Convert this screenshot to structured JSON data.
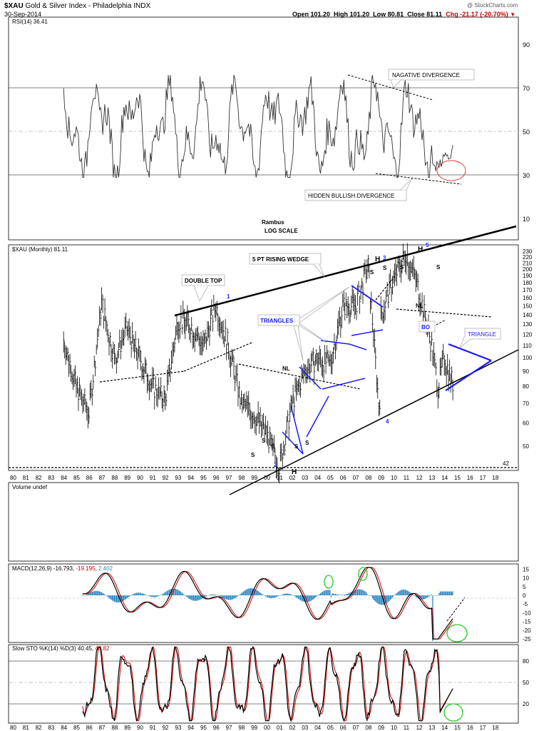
{
  "header": {
    "symbol": "$XAU",
    "name": "Gold & Silver Index - Philadelphia",
    "exchange": "INDX",
    "date": "30-Sep-2014",
    "open": "Open 101.20",
    "high": "High 101.20",
    "low": "Low 80.81",
    "close": "Close 81.11",
    "chg": "Chg -21.17 (-20.70%)",
    "chg_color": "#cc0000",
    "copyright": "@ StockCharts.com"
  },
  "panels": {
    "rsi": {
      "label": "RSI(14) 36.41",
      "ticks": [
        "90",
        "70",
        "50",
        "30",
        "10"
      ]
    },
    "price": {
      "label": "$XAU (Monthly) 81.11",
      "ticks": [
        "230",
        "220",
        "210",
        "200",
        "190",
        "180",
        "170",
        "160",
        "150",
        "140",
        "130",
        "120",
        "110",
        "100",
        "90",
        "80",
        "70",
        "60",
        "50"
      ],
      "low_line_label": "42"
    },
    "volume": {
      "label": "Volume undef"
    },
    "macd": {
      "label_main": "MACD(12,26,9) -16.793,",
      "label_signal": "-19.195,",
      "label_hist": "2.402",
      "signal_color": "#cc0000",
      "hist_color": "#2a86c4",
      "ticks": [
        "15",
        "10",
        "5",
        "0",
        "-5",
        "-10",
        "-15",
        "-20",
        "-25"
      ]
    },
    "sto": {
      "label_main": "Slow STO %K(14) %D(3) 40.45,",
      "label_d": "46.82",
      "d_color": "#cc0000",
      "ticks": [
        "80",
        "50",
        "20"
      ]
    }
  },
  "xaxis": {
    "years": [
      "80",
      "81",
      "82",
      "83",
      "84",
      "85",
      "86",
      "87",
      "88",
      "89",
      "90",
      "91",
      "92",
      "93",
      "94",
      "95",
      "96",
      "97",
      "98",
      "99",
      "00",
      "01",
      "02",
      "03",
      "04",
      "05",
      "06",
      "07",
      "08",
      "09",
      "10",
      "11",
      "12",
      "13",
      "14",
      "15",
      "16",
      "17",
      "18"
    ]
  },
  "annotations": {
    "nagative_divergence": "NAGATIVE DIVERGENCE",
    "hidden_bullish_divergence": "HIDDEN BULLISH DIVERGENCE",
    "rambus": "Rambus",
    "log_scale": "LOG SCALE",
    "double_top": "DOUBLE TOP",
    "rising_wedge": "5 PT RISING WEDGE",
    "triangles": "TRIANGLES",
    "triangle": "TRIANGLE",
    "bo": "BO",
    "nl": "NL",
    "h": "H",
    "s": "S",
    "pt1": "1",
    "pt2": "2",
    "pt3": "3",
    "pt4": "4",
    "pt5": "5"
  },
  "colors": {
    "price": "#000000",
    "trendline_blue": "#1a1aff",
    "circle_red": "#e04040",
    "circle_green": "#22cc22",
    "grid": "#000000"
  },
  "chart_data": {
    "type": "line",
    "title": "$XAU Gold & Silver Index - Philadelphia",
    "scale": "log",
    "x_range": [
      "1980",
      "2018"
    ],
    "price_keypoints": [
      {
        "x": "1984",
        "y": 115
      },
      {
        "x": "1985",
        "y": 80
      },
      {
        "x": "1986",
        "y": 65
      },
      {
        "x": "1987",
        "y": 155
      },
      {
        "x": "1988",
        "y": 100
      },
      {
        "x": "1989",
        "y": 125
      },
      {
        "x": "1990",
        "y": 100
      },
      {
        "x": "1991",
        "y": 80
      },
      {
        "x": "1992",
        "y": 72
      },
      {
        "x": "1993",
        "y": 135
      },
      {
        "x": "1994",
        "y": 130
      },
      {
        "x": "1995",
        "y": 110
      },
      {
        "x": "1996",
        "y": 150
      },
      {
        "x": "1997",
        "y": 110
      },
      {
        "x": "1998",
        "y": 70
      },
      {
        "x": "1999",
        "y": 65
      },
      {
        "x": "2000",
        "y": 55
      },
      {
        "x": "2001",
        "y": 43
      },
      {
        "x": "2002",
        "y": 70
      },
      {
        "x": "2003",
        "y": 90
      },
      {
        "x": "2004",
        "y": 100
      },
      {
        "x": "2005",
        "y": 95
      },
      {
        "x": "2006",
        "y": 150
      },
      {
        "x": "2007",
        "y": 150
      },
      {
        "x": "2008",
        "y": 205
      },
      {
        "x": "2008.9",
        "y": 64
      },
      {
        "x": "2009",
        "y": 140
      },
      {
        "x": "2010",
        "y": 185
      },
      {
        "x": "2011",
        "y": 228
      },
      {
        "x": "2012",
        "y": 170
      },
      {
        "x": "2013",
        "y": 110
      },
      {
        "x": "2013.5",
        "y": 80
      },
      {
        "x": "2014",
        "y": 100
      },
      {
        "x": "2014.7",
        "y": 81.11
      }
    ],
    "rsi_range": [
      0,
      100
    ],
    "macd_range": [
      -27,
      18
    ],
    "sto_range": [
      0,
      100
    ]
  }
}
